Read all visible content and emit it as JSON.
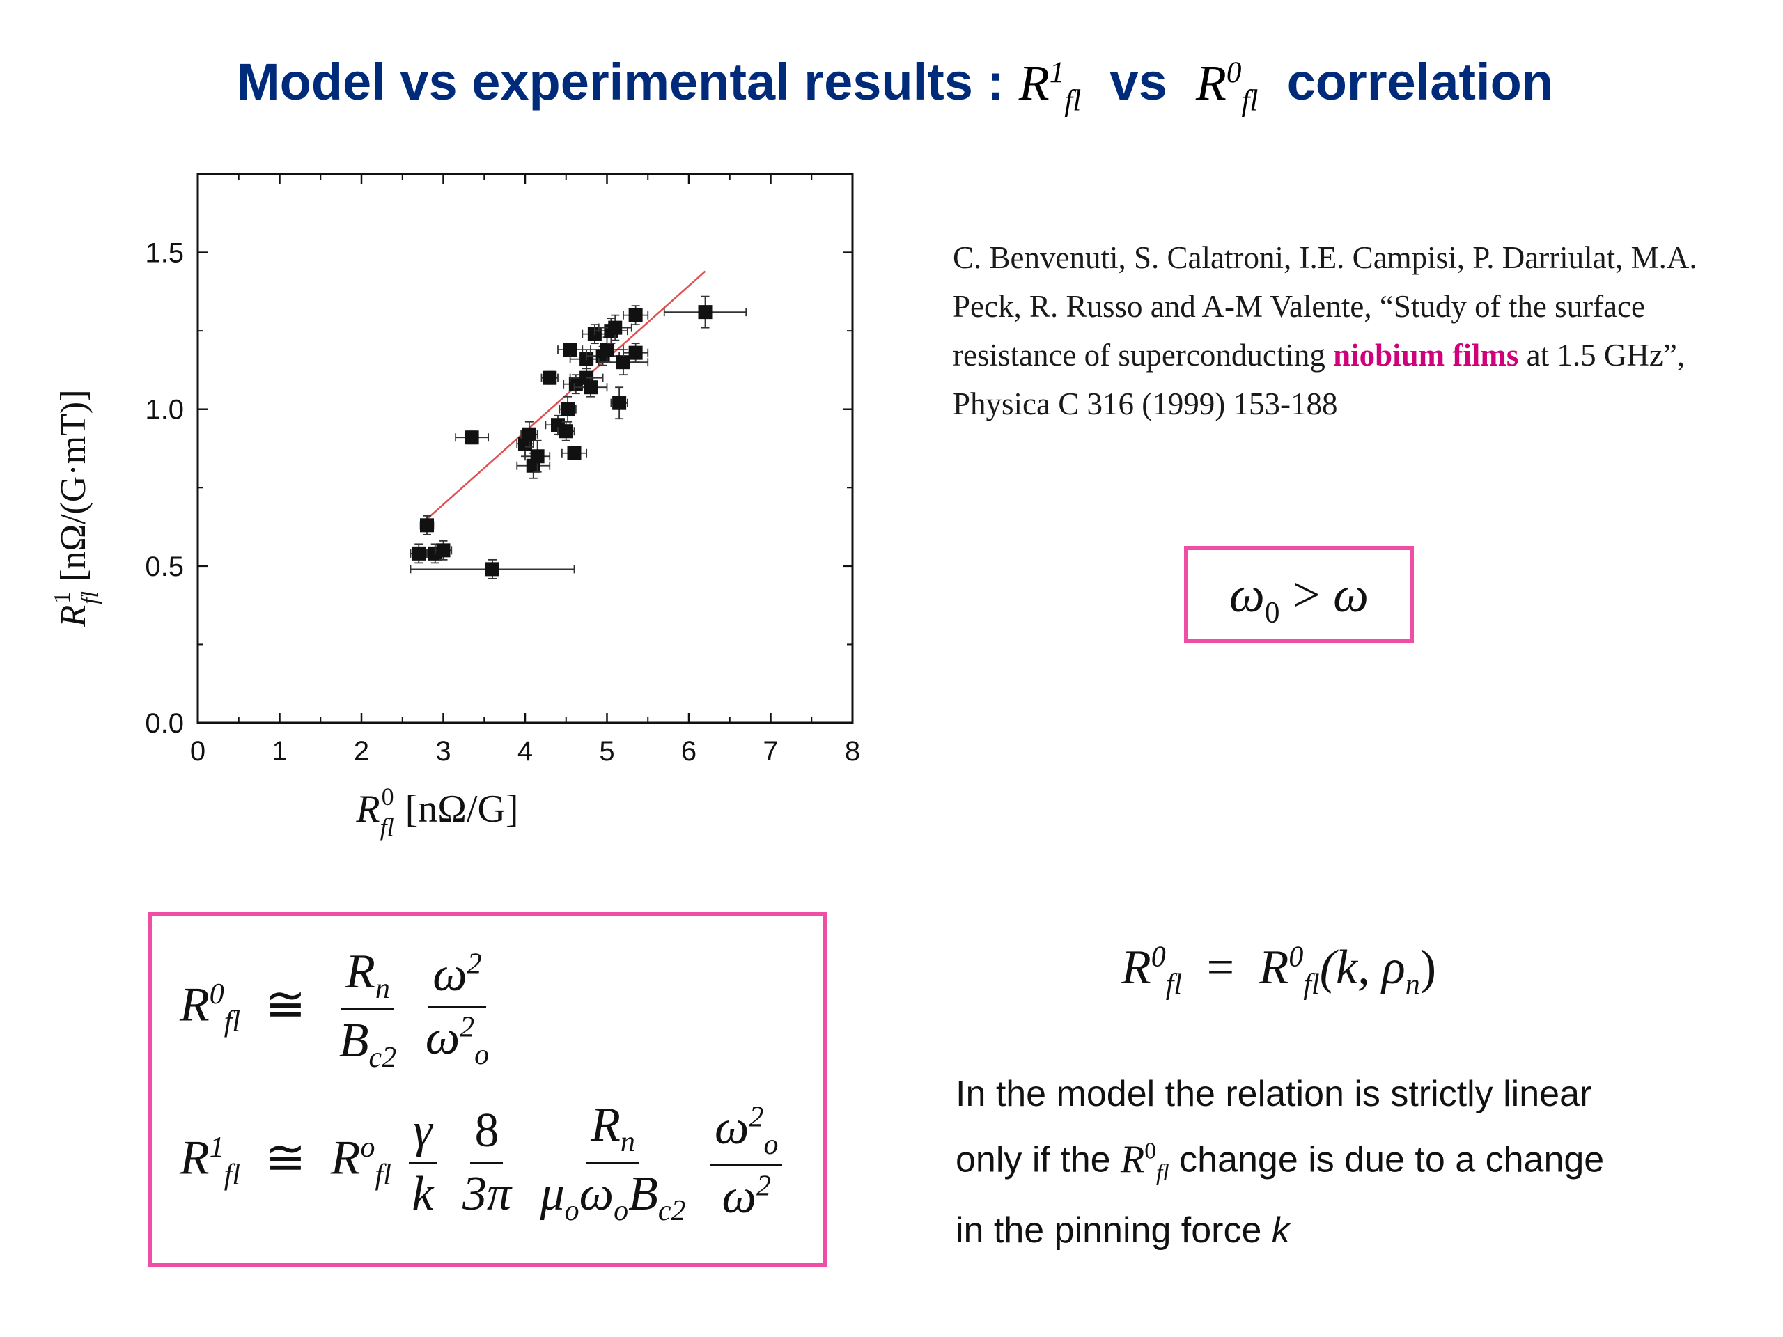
{
  "title": {
    "prefix": "Model vs experimental results : ",
    "r_sym": "R",
    "sub": "fl",
    "sup1": "1",
    "vs": "vs",
    "sup0": "0",
    "suffix": "correlation"
  },
  "reference": {
    "text_before": "C. Benvenuti, S. Calatroni, I.E. Campisi, P. Darriulat, M.A. Peck, R. Russo and A-M Valente, “Study of the surface resistance of superconducting ",
    "highlight": "niobium films",
    "text_after": " at 1.5 GHz”, Physica C 316 (1999) 153-188",
    "highlight_color": "#d0007a"
  },
  "box_color": "#ee4fa5",
  "omega_condition": {
    "lhs": "ω",
    "lhs_sub": "0",
    "op": ">",
    "rhs": "ω"
  },
  "formulas": {
    "eq1": {
      "lhs": "R",
      "lhs_sub": "fl",
      "lhs_sup": "0",
      "rel": "≅",
      "f1_num": "R",
      "f1_num_sub": "n",
      "f1_den": "B",
      "f1_den_sub": "c2",
      "f2_num": "ω",
      "f2_num_sup": "2",
      "f2_den": "ω",
      "f2_den_sub": "o",
      "f2_den_sup": "2"
    },
    "eq2": {
      "lhs": "R",
      "lhs_sub": "fl",
      "lhs_sup": "1",
      "rel": "≅",
      "rhs": "R",
      "rhs_sub": "fl",
      "rhs_sup": "o",
      "f1_num": "γ",
      "f1_den": "k",
      "f2_num": "8",
      "f2_den": "3π",
      "f3_num": "R",
      "f3_num_sub": "n",
      "f3_den_a": "μ",
      "f3_den_a_sub": "o",
      "f3_den_b": "ω",
      "f3_den_b_sub": "o",
      "f3_den_c": "B",
      "f3_den_c_sub": "c2",
      "f4_num": "ω",
      "f4_num_sub": "o",
      "f4_num_sup": "2",
      "f4_den": "ω",
      "f4_den_sup": "2"
    }
  },
  "relation": {
    "lhs": "R",
    "lhs_sub": "fl",
    "lhs_sup": "0",
    "eq": "=",
    "rhs": "R",
    "rhs_sub": "fl",
    "rhs_sup": "0",
    "args": "(k, ρ",
    "args_sub": "n",
    "args_close": ")"
  },
  "note": {
    "line1": "In the model the relation is strictly linear",
    "line2_a": "only if the ",
    "sym": "R",
    "sym_sub": "fl",
    "sym_sup": "0",
    "line2_b": " change is due to a change",
    "line3_a": "in the pinning force ",
    "k": "k"
  },
  "chart_data": {
    "type": "scatter",
    "xlabel": "[nΩ/G]",
    "xlabel_sym": "R",
    "xlabel_sub": "fl",
    "xlabel_sup": "0",
    "ylabel": "[nΩ/(G·mT)]",
    "ylabel_sym": "R",
    "ylabel_sub": "fl",
    "ylabel_sup": "1",
    "xlim": [
      0,
      8
    ],
    "ylim": [
      0,
      1.75
    ],
    "x_ticks": [
      "0",
      "1",
      "2",
      "3",
      "4",
      "5",
      "6",
      "7",
      "8"
    ],
    "y_ticks": [
      "0.0",
      "0.5",
      "1.0",
      "1.5"
    ],
    "y_tick_values": [
      0,
      0.5,
      1.0,
      1.5
    ],
    "fit_line": {
      "x": [
        2.8,
        6.2
      ],
      "y": [
        0.65,
        1.44
      ],
      "color": "#e05050"
    },
    "points": [
      {
        "x": 2.7,
        "y": 0.54,
        "xerr": 0.1,
        "yerr": 0.03
      },
      {
        "x": 2.8,
        "y": 0.63,
        "xerr": 0.08,
        "yerr": 0.03
      },
      {
        "x": 2.9,
        "y": 0.54,
        "xerr": 0.1,
        "yerr": 0.03
      },
      {
        "x": 3.0,
        "y": 0.55,
        "xerr": 0.1,
        "yerr": 0.03
      },
      {
        "x": 3.35,
        "y": 0.91,
        "xerr": 0.2,
        "yerr": 0.02
      },
      {
        "x": 3.6,
        "y": 0.49,
        "xerr": 1.0,
        "yerr": 0.03
      },
      {
        "x": 4.0,
        "y": 0.89,
        "xerr": 0.1,
        "yerr": 0.04
      },
      {
        "x": 4.05,
        "y": 0.92,
        "xerr": 0.1,
        "yerr": 0.04
      },
      {
        "x": 4.1,
        "y": 0.82,
        "xerr": 0.2,
        "yerr": 0.04
      },
      {
        "x": 4.15,
        "y": 0.85,
        "xerr": 0.15,
        "yerr": 0.05
      },
      {
        "x": 4.3,
        "y": 1.1,
        "xerr": 0.1,
        "yerr": 0.02
      },
      {
        "x": 4.4,
        "y": 0.95,
        "xerr": 0.15,
        "yerr": 0.03
      },
      {
        "x": 4.5,
        "y": 0.93,
        "xerr": 0.1,
        "yerr": 0.03
      },
      {
        "x": 4.52,
        "y": 1.0,
        "xerr": 0.1,
        "yerr": 0.04
      },
      {
        "x": 4.55,
        "y": 1.19,
        "xerr": 0.15,
        "yerr": 0.02
      },
      {
        "x": 4.6,
        "y": 0.86,
        "xerr": 0.15,
        "yerr": 0.02
      },
      {
        "x": 4.62,
        "y": 1.08,
        "xerr": 0.15,
        "yerr": 0.03
      },
      {
        "x": 4.75,
        "y": 1.1,
        "xerr": 0.2,
        "yerr": 0.03
      },
      {
        "x": 4.75,
        "y": 1.16,
        "xerr": 0.2,
        "yerr": 0.03
      },
      {
        "x": 4.8,
        "y": 1.07,
        "xerr": 0.2,
        "yerr": 0.03
      },
      {
        "x": 4.85,
        "y": 1.24,
        "xerr": 0.15,
        "yerr": 0.03
      },
      {
        "x": 4.95,
        "y": 1.17,
        "xerr": 0.2,
        "yerr": 0.03
      },
      {
        "x": 5.0,
        "y": 1.19,
        "xerr": 0.2,
        "yerr": 0.04
      },
      {
        "x": 5.05,
        "y": 1.25,
        "xerr": 0.2,
        "yerr": 0.04
      },
      {
        "x": 5.1,
        "y": 1.26,
        "xerr": 0.2,
        "yerr": 0.04
      },
      {
        "x": 5.15,
        "y": 1.02,
        "xerr": 0.1,
        "yerr": 0.05
      },
      {
        "x": 5.2,
        "y": 1.15,
        "xerr": 0.3,
        "yerr": 0.04
      },
      {
        "x": 5.35,
        "y": 1.18,
        "xerr": 0.15,
        "yerr": 0.03
      },
      {
        "x": 5.35,
        "y": 1.3,
        "xerr": 0.15,
        "yerr": 0.03
      },
      {
        "x": 6.2,
        "y": 1.31,
        "xerr": 0.5,
        "yerr": 0.05
      }
    ],
    "grid": false,
    "legend": "none"
  }
}
